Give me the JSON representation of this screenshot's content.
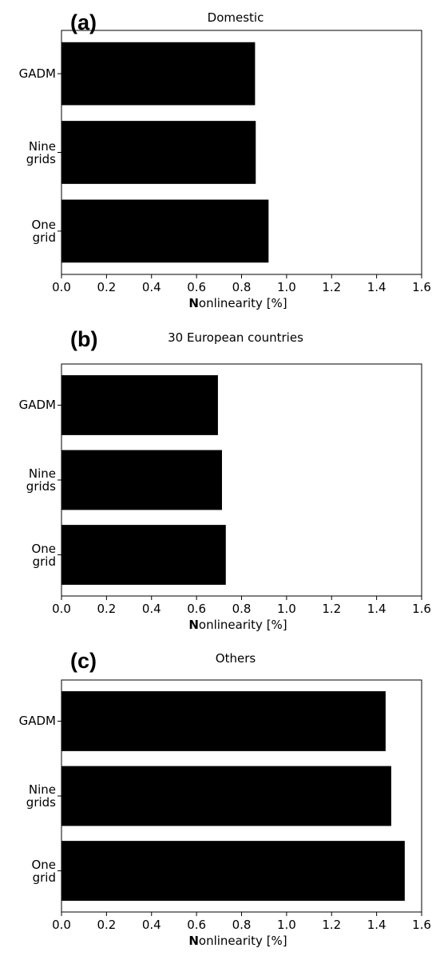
{
  "chart_data": [
    {
      "type": "bar",
      "orientation": "horizontal",
      "panel_label": "(a)",
      "title": "Domestic",
      "xlabel": "Nonlinearity [%]",
      "categories": [
        "GADM",
        "Nine\ngrids",
        "One\ngrid"
      ],
      "values": [
        0.86,
        0.863,
        0.92
      ],
      "color": "#000000",
      "xlim": [
        0,
        1.6
      ],
      "xticks": [
        {
          "value": 0,
          "label": "0.0"
        },
        0.2,
        0.4,
        0.6,
        0.8,
        {
          "value": 1,
          "label": "1.0"
        },
        1.2,
        1.4,
        1.6
      ],
      "grid": false
    },
    {
      "type": "bar",
      "orientation": "horizontal",
      "panel_label": "(b)",
      "title": "30 European countries",
      "xlabel": "Nonlinearity [%]",
      "categories": [
        "GADM",
        "Nine\ngrids",
        "One\ngrid"
      ],
      "values": [
        0.695,
        0.713,
        0.73
      ],
      "color": "#000000",
      "xlim": [
        0,
        1.6
      ],
      "xticks": [
        {
          "value": 0,
          "label": "0.0"
        },
        0.2,
        0.4,
        0.6,
        0.8,
        {
          "value": 1,
          "label": "1.0"
        },
        1.2,
        1.4,
        1.6
      ],
      "grid": false
    },
    {
      "type": "bar",
      "orientation": "horizontal",
      "panel_label": "(c)",
      "title": "Others",
      "xlabel": "Nonlinearity [%]",
      "categories": [
        "GADM",
        "Nine\ngrids",
        "One\ngrid"
      ],
      "values": [
        1.44,
        1.465,
        1.525
      ],
      "color": "#000000",
      "xlim": [
        0,
        1.6
      ],
      "xticks": [
        {
          "value": 0,
          "label": "0.0"
        },
        0.2,
        0.4,
        0.6,
        0.8,
        {
          "value": 1,
          "label": "1.0"
        },
        1.2,
        1.4,
        1.6
      ],
      "grid": false
    }
  ]
}
